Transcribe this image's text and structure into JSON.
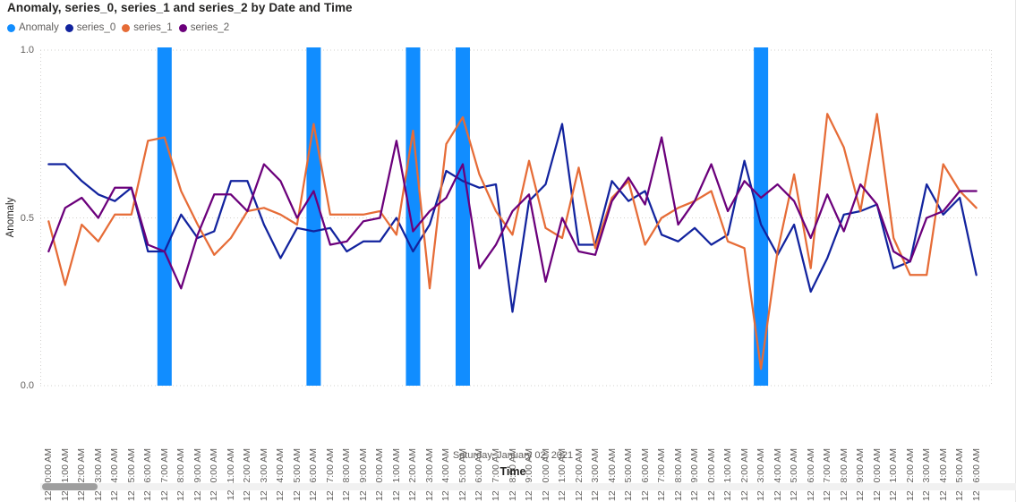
{
  "title": "Anomaly, series_0, series_1 and series_2 by Date and Time",
  "legend": [
    {
      "label": "Anomaly",
      "color": "#118DFF"
    },
    {
      "label": "series_0",
      "color": "#12239E"
    },
    {
      "label": "series_1",
      "color": "#E66C37"
    },
    {
      "label": "series_2",
      "color": "#6B007B"
    }
  ],
  "chart_data": {
    "type": "line",
    "title": "Anomaly, series_0, series_1 and series_2 by Date and Time",
    "xlabel": "Time",
    "ylabel": "Anomaly",
    "date_group_label": "Saturday, January 02, 2021",
    "ylim": [
      0,
      1
    ],
    "yticks": [
      0.0,
      0.5,
      1.0
    ],
    "ytick_labels": [
      "0.0",
      "0.5",
      "1.0"
    ],
    "grid": "dotted horizontal gridlines at 0.0 / 0.5 / 1.0, dotted plot border",
    "legend_position": "top-left",
    "categories": [
      "12:00:00 AM",
      "12:01:00 AM",
      "12:02:00 AM",
      "12:03:00 AM",
      "12:04:00 AM",
      "12:05:00 AM",
      "12:06:00 AM",
      "12:07:00 AM",
      "12:08:00 AM",
      "12:09:00 AM",
      "12:10:00 AM",
      "12:11:00 AM",
      "12:12:00 AM",
      "12:13:00 AM",
      "12:14:00 AM",
      "12:15:00 AM",
      "12:16:00 AM",
      "12:17:00 AM",
      "12:18:00 AM",
      "12:19:00 AM",
      "12:20:00 AM",
      "12:21:00 AM",
      "12:22:00 AM",
      "12:23:00 AM",
      "12:24:00 AM",
      "12:25:00 AM",
      "12:26:00 AM",
      "12:27:00 AM",
      "12:28:00 AM",
      "12:29:00 AM",
      "12:30:00 AM",
      "12:31:00 AM",
      "12:32:00 AM",
      "12:33:00 AM",
      "12:34:00 AM",
      "12:35:00 AM",
      "12:36:00 AM",
      "12:37:00 AM",
      "12:38:00 AM",
      "12:39:00 AM",
      "12:40:00 AM",
      "12:41:00 AM",
      "12:42:00 AM",
      "12:43:00 AM",
      "12:44:00 AM",
      "12:45:00 AM",
      "12:46:00 AM",
      "12:47:00 AM",
      "12:48:00 AM",
      "12:49:00 AM",
      "12:50:00 AM",
      "12:51:00 AM",
      "12:52:00 AM",
      "12:53:00 AM",
      "12:54:00 AM",
      "12:55:00 AM",
      "12:56:00 AM"
    ],
    "anomaly_bars": {
      "name": "Anomaly",
      "color": "#118DFF",
      "indices": [
        7,
        16,
        22,
        25,
        43
      ],
      "categories": [
        "12:07:00 AM",
        "12:16:00 AM",
        "12:22:00 AM",
        "12:25:00 AM",
        "12:43:00 AM"
      ]
    },
    "series": [
      {
        "name": "series_0",
        "color": "#12239E",
        "values": [
          0.66,
          0.66,
          0.61,
          0.57,
          0.55,
          0.59,
          0.4,
          0.4,
          0.51,
          0.44,
          0.46,
          0.61,
          0.61,
          0.48,
          0.38,
          0.47,
          0.46,
          0.47,
          0.4,
          0.43,
          0.43,
          0.5,
          0.4,
          0.48,
          0.64,
          0.61,
          0.59,
          0.6,
          0.22,
          0.55,
          0.6,
          0.78,
          0.42,
          0.42,
          0.61,
          0.55,
          0.58,
          0.45,
          0.43,
          0.47,
          0.42,
          0.45,
          0.67,
          0.48,
          0.39,
          0.48,
          0.28,
          0.38,
          0.51,
          0.52,
          0.54,
          0.35,
          0.37,
          0.6,
          0.51,
          0.56,
          0.33
        ]
      },
      {
        "name": "series_1",
        "color": "#E66C37",
        "values": [
          0.49,
          0.3,
          0.48,
          0.43,
          0.51,
          0.51,
          0.73,
          0.74,
          0.58,
          0.48,
          0.39,
          0.44,
          0.52,
          0.53,
          0.51,
          0.48,
          0.78,
          0.51,
          0.51,
          0.51,
          0.52,
          0.45,
          0.76,
          0.29,
          0.72,
          0.8,
          0.63,
          0.52,
          0.45,
          0.67,
          0.47,
          0.44,
          0.65,
          0.41,
          0.56,
          0.61,
          0.42,
          0.5,
          0.53,
          0.55,
          0.58,
          0.43,
          0.41,
          0.05,
          0.4,
          0.63,
          0.35,
          0.81,
          0.71,
          0.52,
          0.81,
          0.44,
          0.33,
          0.33,
          0.66,
          0.58,
          0.53
        ]
      },
      {
        "name": "series_2",
        "color": "#6B007B",
        "values": [
          0.4,
          0.53,
          0.56,
          0.5,
          0.59,
          0.59,
          0.42,
          0.4,
          0.29,
          0.45,
          0.57,
          0.57,
          0.52,
          0.66,
          0.61,
          0.5,
          0.58,
          0.42,
          0.43,
          0.49,
          0.5,
          0.73,
          0.46,
          0.52,
          0.56,
          0.66,
          0.35,
          0.42,
          0.52,
          0.57,
          0.31,
          0.5,
          0.4,
          0.39,
          0.55,
          0.62,
          0.54,
          0.74,
          0.48,
          0.55,
          0.66,
          0.52,
          0.61,
          0.56,
          0.6,
          0.55,
          0.44,
          0.57,
          0.46,
          0.6,
          0.54,
          0.4,
          0.37,
          0.5,
          0.52,
          0.58,
          0.58
        ]
      }
    ]
  },
  "colors": {
    "anomaly": "#118DFF",
    "series_0": "#12239E",
    "series_1": "#E66C37",
    "series_2": "#6B007B",
    "gridline": "#d2d0ce",
    "axis_text": "#605E5C",
    "title_text": "#252423"
  }
}
